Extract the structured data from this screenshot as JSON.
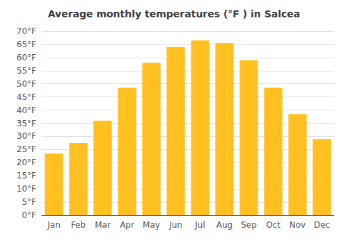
{
  "chart_data": {
    "type": "bar",
    "title": "Average monthly temperatures (°F ) in Salcea",
    "categories": [
      "Jan",
      "Feb",
      "Mar",
      "Apr",
      "May",
      "Jun",
      "Jul",
      "Aug",
      "Sep",
      "Oct",
      "Nov",
      "Dec"
    ],
    "values": [
      23.5,
      27.5,
      36,
      48.5,
      58,
      64,
      66.5,
      65.5,
      59,
      48.5,
      38.5,
      29
    ],
    "color": "#FFC020",
    "ylim": [
      0,
      70
    ],
    "yticks": [
      {
        "value": 0,
        "label": "0°F"
      },
      {
        "value": 5,
        "label": "5°F"
      },
      {
        "value": 10,
        "label": "10°F"
      },
      {
        "value": 15,
        "label": "15°F"
      },
      {
        "value": 20,
        "label": "20°F"
      },
      {
        "value": 25,
        "label": "25°F"
      },
      {
        "value": 30,
        "label": "30°F"
      },
      {
        "value": 35,
        "label": "35°F"
      },
      {
        "value": 40,
        "label": "40°F"
      },
      {
        "value": 45,
        "label": "45°F"
      },
      {
        "value": 50,
        "label": "50°F"
      },
      {
        "value": 55,
        "label": "55°F"
      },
      {
        "value": 60,
        "label": "60°F"
      },
      {
        "value": 65,
        "label": "65°F"
      },
      {
        "value": 70,
        "label": "70°F"
      }
    ],
    "grid": true
  }
}
